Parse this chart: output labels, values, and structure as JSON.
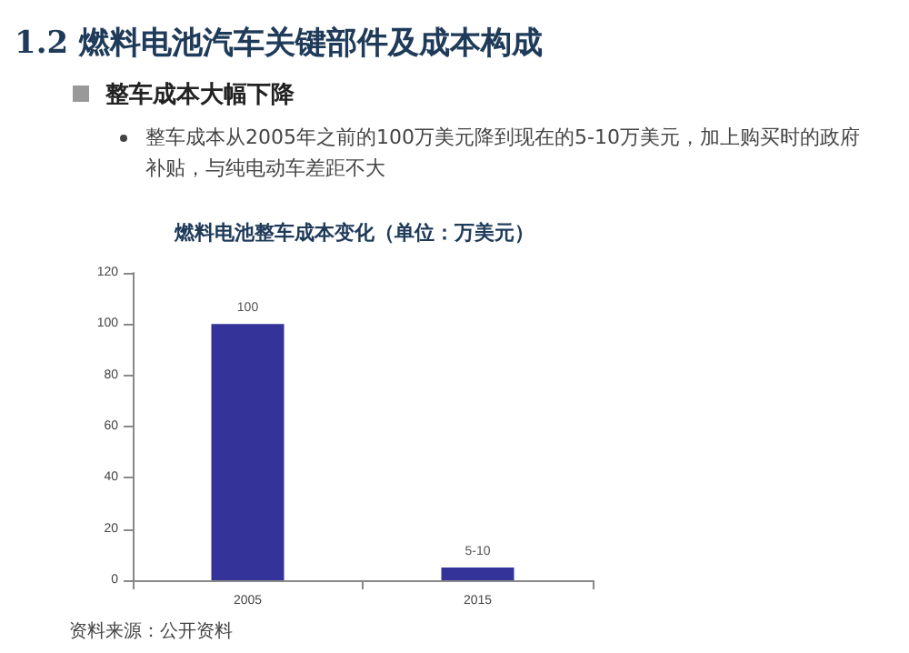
{
  "chart_data": {
    "type": "bar",
    "title": "燃料电池整车成本变化（单位：万美元）",
    "annotations": [
      "1.2 燃料电池汽车关键部件及成本构成",
      "整车成本大幅下降",
      "整车成本从2005年之前的100万美元降到现在的5-10万美元，加上购买时的政府补贴，与纯电动车差距不大",
      "资料来源：公开资料"
    ],
    "categories": [
      "2005",
      "2015"
    ],
    "values": [
      100,
      5
    ],
    "value_labels": [
      "100",
      "5-10"
    ],
    "color": "#333399",
    "ylim": [
      0,
      120
    ],
    "yticks": [
      0,
      20,
      40,
      60,
      80,
      100,
      120
    ],
    "grid": false
  }
}
